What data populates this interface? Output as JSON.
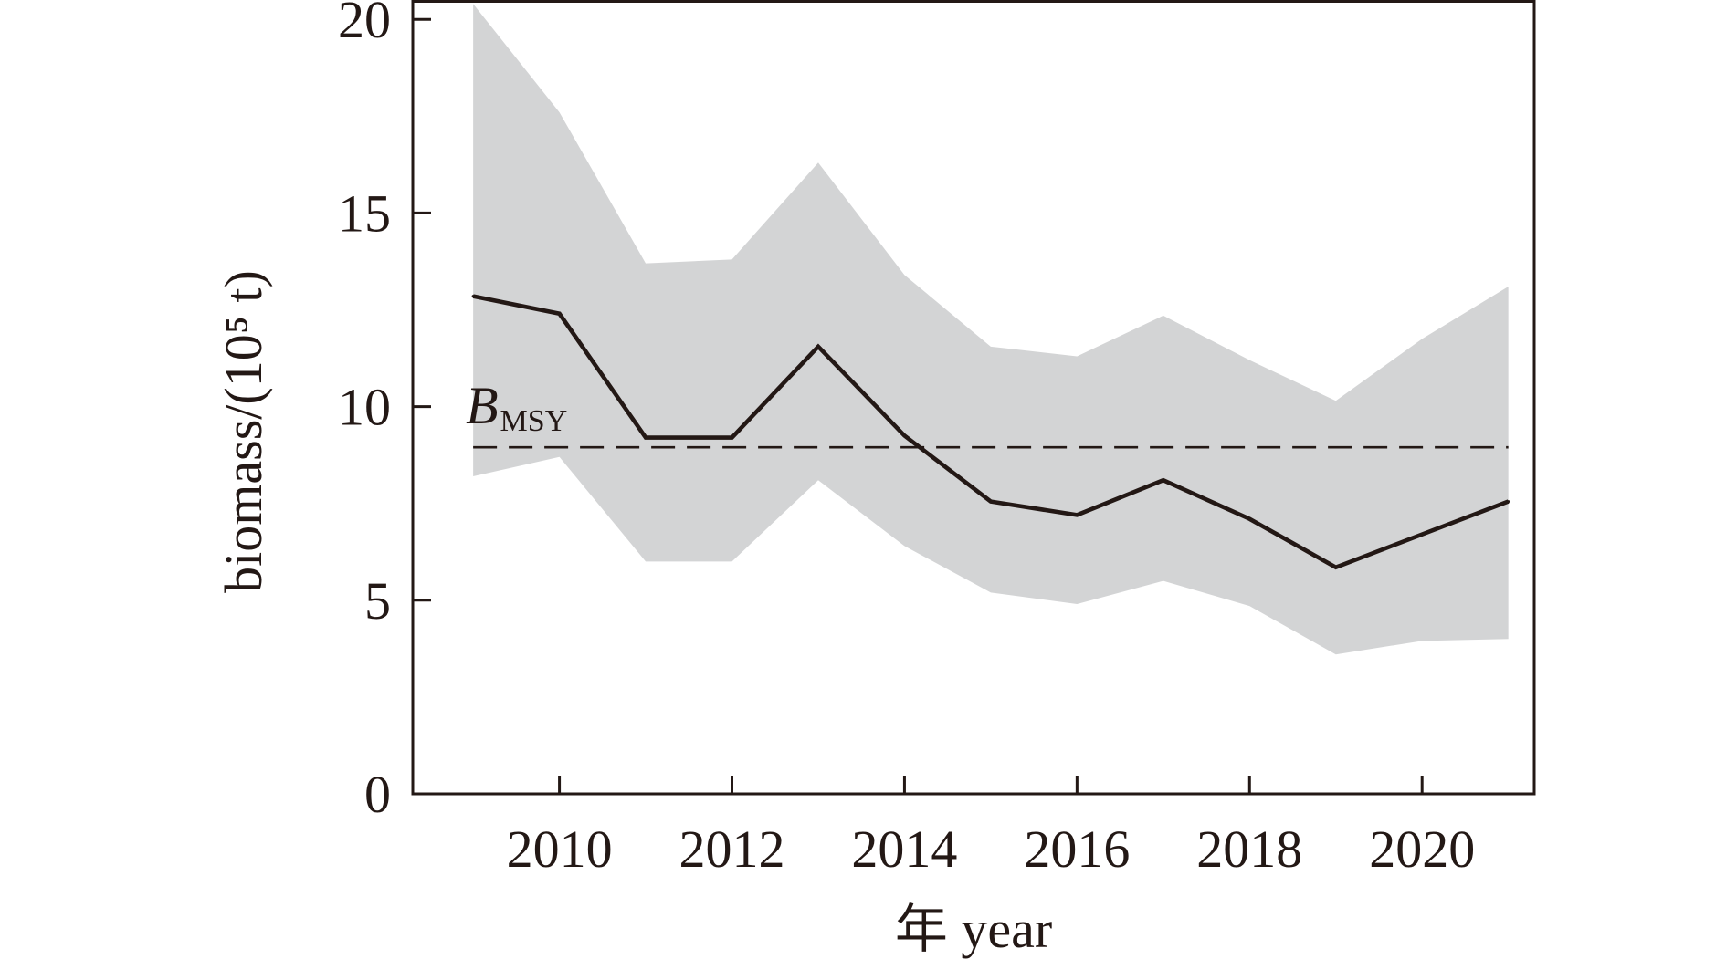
{
  "chart_data": {
    "type": "line",
    "xlabel": "年 year",
    "ylabel": "biomass/(10⁵ t)",
    "xlim": [
      2008.3,
      2021.3
    ],
    "ylim": [
      0,
      20.5
    ],
    "xticks": [
      2010,
      2012,
      2014,
      2016,
      2018,
      2020
    ],
    "xtick_labels": [
      "2010",
      "2012",
      "2014",
      "2016",
      "2018",
      "2020"
    ],
    "yticks": [
      0,
      5,
      10,
      15,
      20
    ],
    "ytick_labels": [
      "0",
      "5",
      "10",
      "15",
      "20"
    ],
    "grid": false,
    "x": [
      2009,
      2010,
      2011,
      2012,
      2013,
      2014,
      2015,
      2016,
      2017,
      2018,
      2019,
      2020,
      2021
    ],
    "series": [
      {
        "kind": "line",
        "color": "#231815",
        "values": [
          12.85,
          12.4,
          9.2,
          9.2,
          11.55,
          9.25,
          7.55,
          7.2,
          8.1,
          7.1,
          5.85,
          6.7,
          7.55
        ]
      },
      {
        "kind": "band",
        "color": "#d3d4d5",
        "lower": [
          8.2,
          8.7,
          6.0,
          6.0,
          8.1,
          6.4,
          5.2,
          4.9,
          5.5,
          4.85,
          3.6,
          3.95,
          4.0
        ],
        "upper": [
          20.4,
          17.6,
          13.7,
          13.8,
          16.3,
          13.4,
          11.55,
          11.3,
          12.35,
          11.2,
          10.15,
          11.75,
          13.1
        ]
      }
    ],
    "reference_line": {
      "label_main": "B",
      "label_sub": "MSY",
      "value": 8.95,
      "style": "dashed",
      "color": "#231815"
    }
  }
}
